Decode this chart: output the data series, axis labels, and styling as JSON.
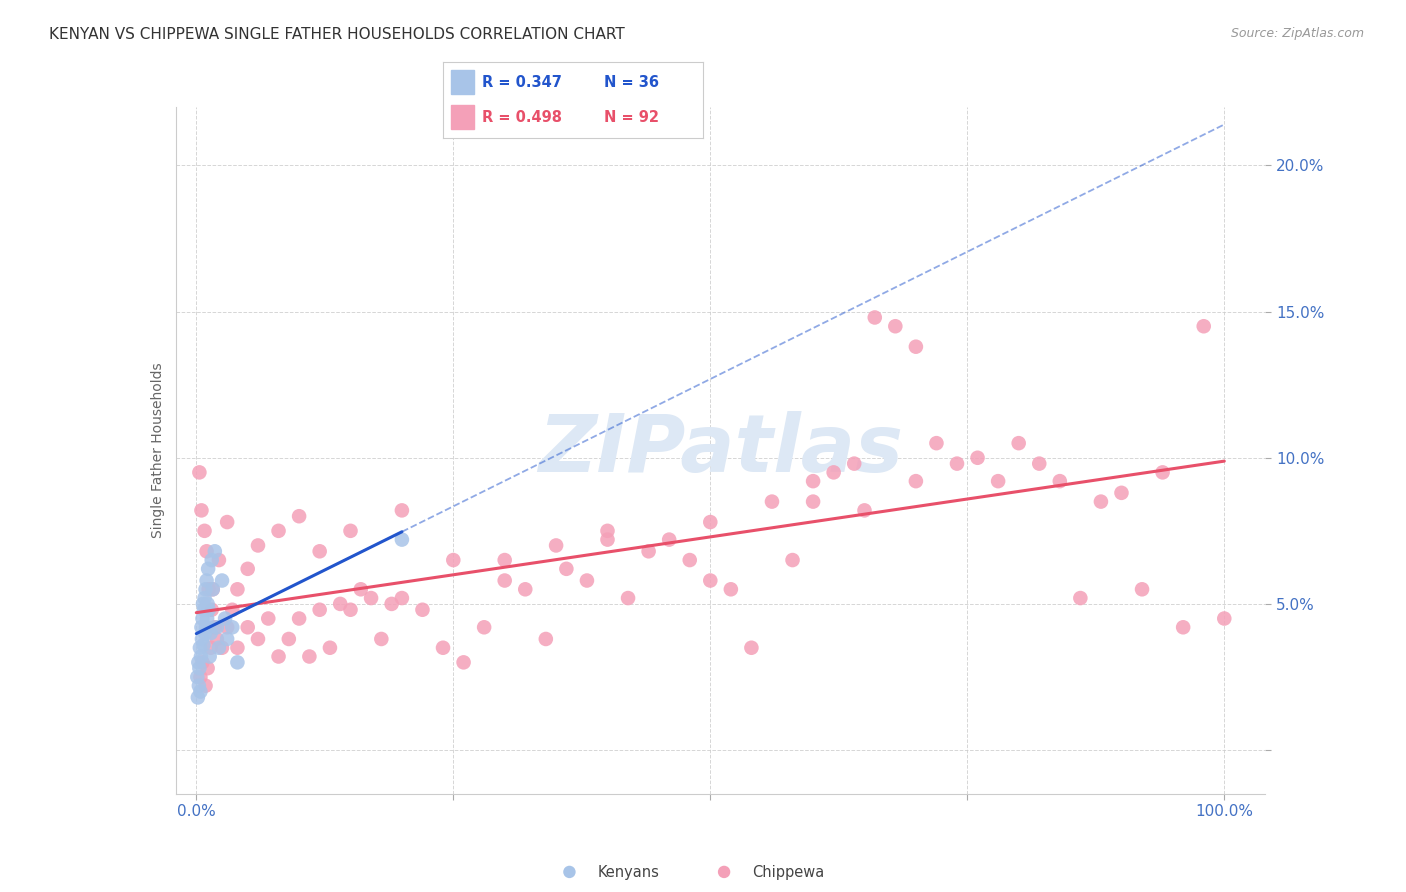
{
  "title": "KENYAN VS CHIPPEWA SINGLE FATHER HOUSEHOLDS CORRELATION CHART",
  "source": "Source: ZipAtlas.com",
  "ylabel_label": "Single Father Households",
  "kenyan_R": 0.347,
  "kenyan_N": 36,
  "chippewa_R": 0.498,
  "chippewa_N": 92,
  "kenyan_color": "#a8c4e8",
  "chippewa_color": "#f4a0b8",
  "kenyan_line_color": "#2255cc",
  "chippewa_line_color": "#e8506a",
  "background_color": "#ffffff",
  "grid_color": "#cccccc",
  "watermark_text": "ZIPatlas",
  "watermark_color": "#dde8f5",
  "xlim": [
    -2,
    104
  ],
  "ylim": [
    -1.5,
    22
  ],
  "x_ticks": [
    0,
    25,
    50,
    75,
    100
  ],
  "y_ticks": [
    0,
    5,
    10,
    15,
    20
  ],
  "kenyan_scatter_x": [
    0.1,
    0.15,
    0.2,
    0.25,
    0.3,
    0.35,
    0.4,
    0.45,
    0.5,
    0.55,
    0.6,
    0.65,
    0.7,
    0.75,
    0.8,
    0.85,
    0.9,
    0.95,
    1.0,
    1.05,
    1.1,
    1.15,
    1.2,
    1.3,
    1.4,
    1.5,
    1.6,
    1.8,
    2.0,
    2.2,
    2.5,
    2.8,
    3.0,
    3.5,
    4.0,
    20.0
  ],
  "kenyan_scatter_y": [
    2.5,
    1.8,
    3.0,
    2.2,
    2.8,
    3.5,
    2.0,
    3.2,
    4.2,
    3.8,
    4.5,
    5.0,
    3.6,
    4.8,
    5.2,
    4.0,
    5.5,
    4.2,
    5.8,
    4.5,
    5.0,
    6.2,
    4.8,
    3.2,
    4.0,
    6.5,
    5.5,
    6.8,
    4.2,
    3.5,
    5.8,
    4.5,
    3.8,
    4.2,
    3.0,
    7.2
  ],
  "chippewa_scatter_x": [
    0.3,
    0.5,
    0.8,
    1.0,
    1.2,
    1.5,
    1.8,
    2.0,
    2.5,
    3.0,
    3.5,
    4.0,
    5.0,
    6.0,
    7.0,
    8.0,
    9.0,
    10.0,
    11.0,
    12.0,
    13.0,
    14.0,
    15.0,
    16.0,
    17.0,
    18.0,
    19.0,
    20.0,
    22.0,
    24.0,
    26.0,
    28.0,
    30.0,
    32.0,
    34.0,
    36.0,
    38.0,
    40.0,
    42.0,
    44.0,
    46.0,
    48.0,
    50.0,
    52.0,
    54.0,
    56.0,
    58.0,
    60.0,
    62.0,
    64.0,
    65.0,
    66.0,
    68.0,
    70.0,
    72.0,
    74.0,
    76.0,
    78.0,
    80.0,
    82.0,
    84.0,
    86.0,
    88.0,
    90.0,
    92.0,
    94.0,
    96.0,
    98.0,
    100.0,
    0.4,
    0.6,
    0.9,
    1.1,
    1.4,
    1.6,
    2.2,
    3.0,
    4.0,
    5.0,
    6.0,
    8.0,
    10.0,
    12.0,
    15.0,
    20.0,
    25.0,
    30.0,
    35.0,
    40.0,
    50.0,
    60.0,
    70.0
  ],
  "chippewa_scatter_y": [
    9.5,
    8.2,
    7.5,
    6.8,
    5.5,
    4.8,
    4.2,
    3.8,
    3.5,
    4.2,
    4.8,
    3.5,
    4.2,
    3.8,
    4.5,
    3.2,
    3.8,
    4.5,
    3.2,
    4.8,
    3.5,
    5.0,
    4.8,
    5.5,
    5.2,
    3.8,
    5.0,
    5.2,
    4.8,
    3.5,
    3.0,
    4.2,
    6.5,
    5.5,
    3.8,
    6.2,
    5.8,
    7.5,
    5.2,
    6.8,
    7.2,
    6.5,
    5.8,
    5.5,
    3.5,
    8.5,
    6.5,
    9.2,
    9.5,
    9.8,
    8.2,
    14.8,
    14.5,
    13.8,
    10.5,
    9.8,
    10.0,
    9.2,
    10.5,
    9.8,
    9.2,
    5.2,
    8.5,
    8.8,
    5.5,
    9.5,
    4.2,
    14.5,
    4.5,
    2.5,
    3.0,
    2.2,
    2.8,
    3.5,
    5.5,
    6.5,
    7.8,
    5.5,
    6.2,
    7.0,
    7.5,
    8.0,
    6.8,
    7.5,
    8.2,
    6.5,
    5.8,
    7.0,
    7.2,
    7.8,
    8.5,
    9.2
  ]
}
